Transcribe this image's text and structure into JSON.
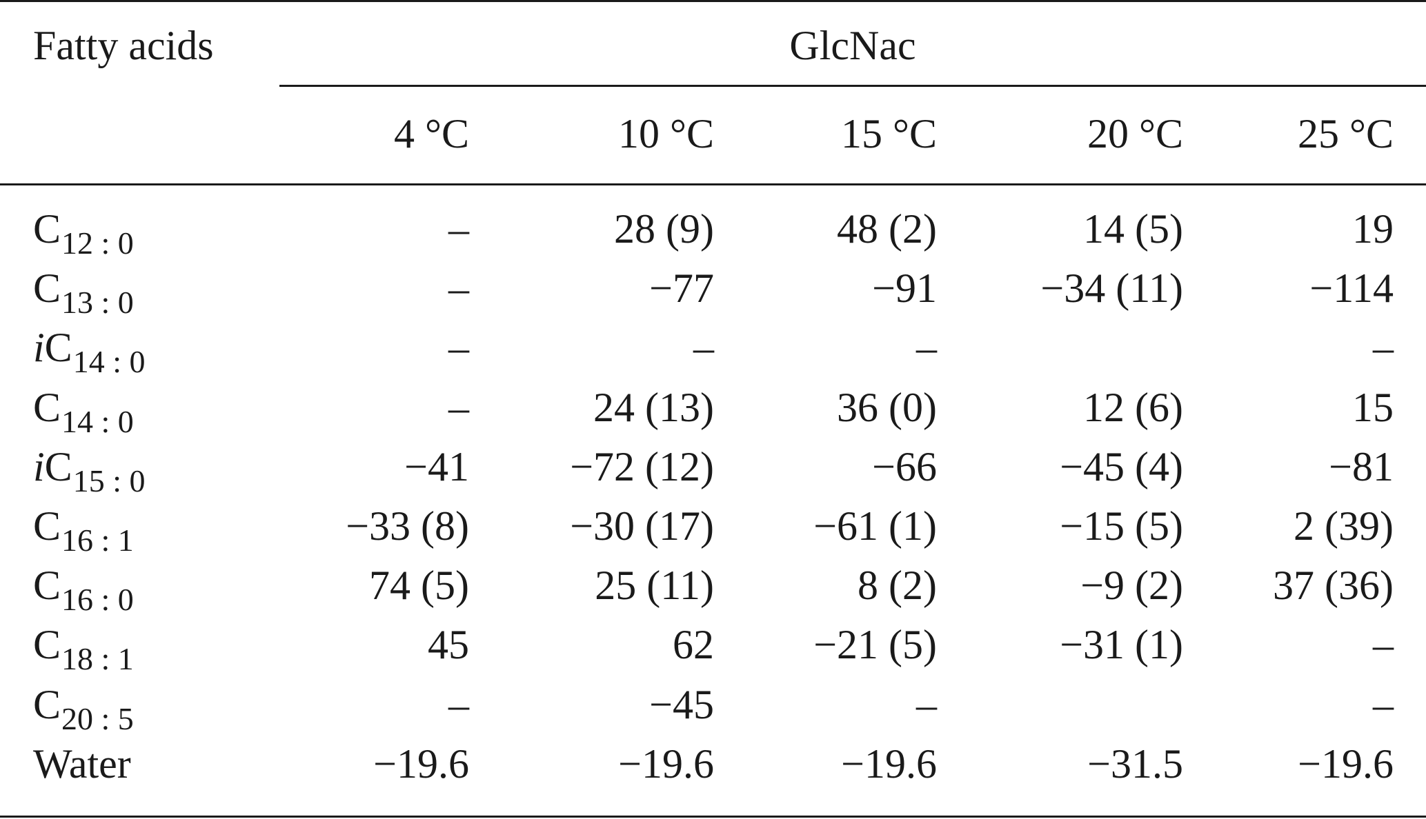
{
  "header": {
    "first_column": "Fatty acids",
    "group": "GlcNac",
    "columns": [
      "4 °C",
      "10 °C",
      "15 °C",
      "20 °C",
      "25 °C"
    ]
  },
  "rows": [
    {
      "prefix": "",
      "base": "C",
      "sub": "12 : 0",
      "values": [
        "–",
        "28 (9)",
        "48 (2)",
        "14 (5)",
        "19"
      ]
    },
    {
      "prefix": "",
      "base": "C",
      "sub": "13 : 0",
      "values": [
        "–",
        "−77",
        "−91",
        "−34 (11)",
        "−114"
      ]
    },
    {
      "prefix": "i",
      "base": "C",
      "sub": "14 : 0",
      "values": [
        "–",
        "–",
        "–",
        "",
        "–"
      ]
    },
    {
      "prefix": "",
      "base": "C",
      "sub": "14 : 0",
      "values": [
        "–",
        "24 (13)",
        "36 (0)",
        "12 (6)",
        "15"
      ]
    },
    {
      "prefix": "i",
      "base": "C",
      "sub": "15 : 0",
      "values": [
        "−41",
        "−72 (12)",
        "−66",
        "−45 (4)",
        "−81"
      ]
    },
    {
      "prefix": "",
      "base": "C",
      "sub": "16 : 1",
      "values": [
        "−33 (8)",
        "−30 (17)",
        "−61 (1)",
        "−15 (5)",
        "2 (39)"
      ]
    },
    {
      "prefix": "",
      "base": "C",
      "sub": "16 : 0",
      "values": [
        "74 (5)",
        "25 (11)",
        "8 (2)",
        "−9 (2)",
        "37 (36)"
      ]
    },
    {
      "prefix": "",
      "base": "C",
      "sub": "18 : 1",
      "values": [
        "45",
        "62",
        "−21 (5)",
        "−31 (1)",
        "–"
      ]
    },
    {
      "prefix": "",
      "base": "C",
      "sub": "20 : 5",
      "values": [
        "–",
        "−45",
        "–",
        "",
        "–"
      ]
    },
    {
      "prefix": "",
      "base": "Water",
      "sub": "",
      "values": [
        "−19.6",
        "−19.6",
        "−19.6",
        "−31.5",
        "−19.6"
      ]
    }
  ]
}
